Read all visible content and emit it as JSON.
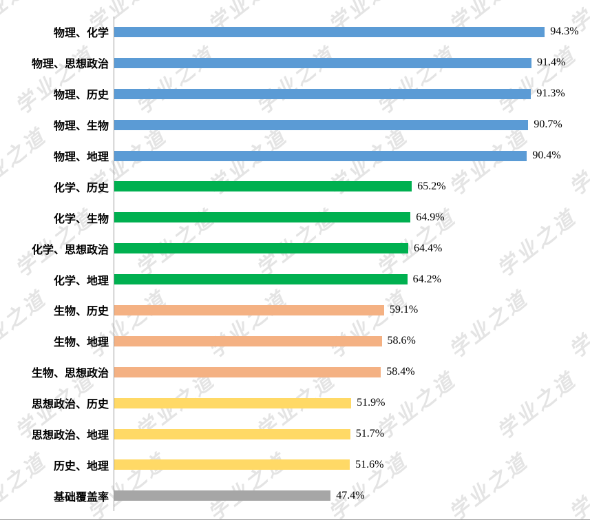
{
  "watermark": {
    "text": "学业之道",
    "color": "#dcdcdc"
  },
  "chart_data": {
    "type": "bar",
    "orientation": "horizontal",
    "title": "",
    "xlabel": "",
    "ylabel": "",
    "xlim": [
      0,
      100
    ],
    "grid": false,
    "legend": "none",
    "categories": [
      "物理、化学",
      "物理、思想政治",
      "物理、历史",
      "物理、生物",
      "物理、地理",
      "化学、历史",
      "化学、生物",
      "化学、思想政治",
      "化学、地理",
      "生物、历史",
      "生物、地理",
      "生物、思想政治",
      "思想政治、历史",
      "思想政治、地理",
      "历史、地理",
      "基础覆盖率"
    ],
    "values": [
      94.3,
      91.4,
      91.3,
      90.7,
      90.4,
      65.2,
      64.9,
      64.4,
      64.2,
      59.1,
      58.6,
      58.4,
      51.9,
      51.7,
      51.6,
      47.4
    ],
    "value_labels": [
      "94.3%",
      "91.4%",
      "91.3%",
      "90.7%",
      "90.4%",
      "65.2%",
      "64.9%",
      "64.4%",
      "64.2%",
      "59.1%",
      "58.6%",
      "58.4%",
      "51.9%",
      "51.7%",
      "51.6%",
      "47.4%"
    ],
    "bar_colors": [
      "#5B9BD5",
      "#5B9BD5",
      "#5B9BD5",
      "#5B9BD5",
      "#5B9BD5",
      "#00B050",
      "#00B050",
      "#00B050",
      "#00B050",
      "#F4B183",
      "#F4B183",
      "#F4B183",
      "#FFD966",
      "#FFD966",
      "#FFD966",
      "#A6A6A6"
    ],
    "color_groups": {
      "physics_pairs": "#5B9BD5",
      "chemistry_pairs": "#00B050",
      "biology_pairs": "#F4B183",
      "politics_history_geo_pairs": "#FFD966",
      "baseline": "#A6A6A6"
    }
  }
}
